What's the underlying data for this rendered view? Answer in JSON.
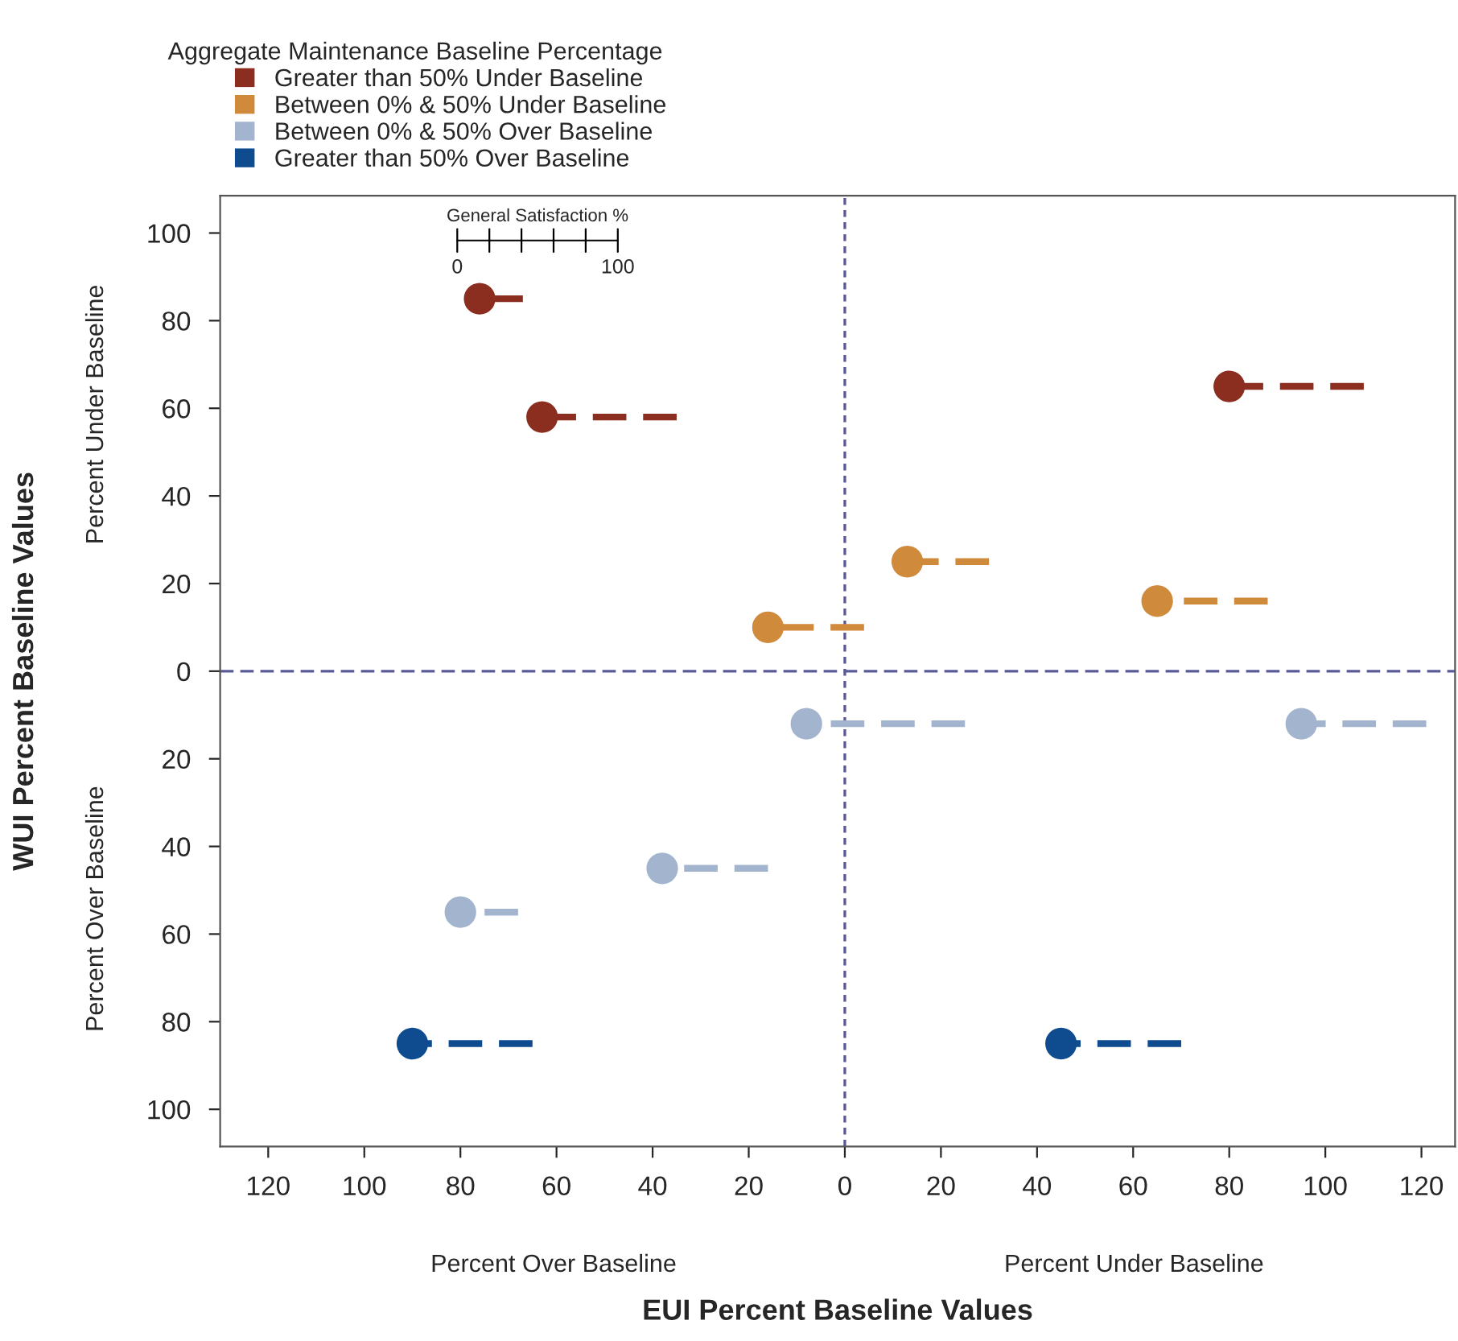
{
  "chart_data": {
    "type": "scatter",
    "xlabel": "EUI Percent Baseline Values",
    "ylabel": "WUI Percent Baseline Values",
    "legend_title": "Aggregate Maintenance Baseline Percentage",
    "legend": "top left",
    "marker": "circle",
    "line_style": "dashed",
    "grid": false,
    "xlim": [
      -130,
      127
    ],
    "ylim": [
      -108.5,
      108.5
    ],
    "xticks": [
      {
        "value": -120,
        "label": "120"
      },
      {
        "value": -100,
        "label": "100"
      },
      {
        "value": -80,
        "label": "80"
      },
      {
        "value": -60,
        "label": "60"
      },
      {
        "value": -40,
        "label": "40"
      },
      {
        "value": -20,
        "label": "20"
      },
      0,
      20,
      40,
      60,
      80,
      100,
      120
    ],
    "yticks": [
      {
        "value": -100,
        "label": "100"
      },
      {
        "value": -80,
        "label": "80"
      },
      {
        "value": -60,
        "label": "60"
      },
      {
        "value": -40,
        "label": "40"
      },
      {
        "value": -20,
        "label": "20"
      },
      0,
      20,
      40,
      60,
      80,
      100
    ],
    "ref_lines": [
      {
        "axis": "x",
        "value": 0,
        "color": "#5a5a96",
        "line_style": "dotted"
      },
      {
        "axis": "y",
        "value": 0,
        "color": "#5a5a96",
        "line_style": "dashed"
      }
    ],
    "annotations": [
      "Percent Under Baseline",
      "Percent Over Baseline",
      "Percent Over Baseline",
      "Percent Under Baseline",
      "General Satisfaction %",
      "0",
      "100"
    ],
    "series": [
      {
        "name": "Greater than 50% Under Baseline",
        "color": "#8b2e20",
        "x": [
          -76,
          -63,
          80
        ],
        "values": [
          85,
          58,
          65
        ],
        "xerrors": [
          [
            -76,
            -67
          ],
          [
            -63,
            -35
          ],
          [
            80,
            108
          ]
        ]
      },
      {
        "name": "Between 0% & 50% Under Baseline",
        "color": "#d08a3c",
        "x": [
          -16,
          13,
          65
        ],
        "values": [
          10,
          25,
          16
        ],
        "xerrors": [
          [
            -16,
            4
          ],
          [
            13,
            30
          ],
          [
            65,
            88
          ]
        ]
      },
      {
        "name": "Between 0% & 50% Over Baseline",
        "color": "#a3b4cf",
        "x": [
          -8,
          95,
          -38,
          -80
        ],
        "values": [
          -12,
          -12,
          -45,
          -55
        ],
        "xerrors": [
          [
            -8,
            25
          ],
          [
            95,
            121
          ],
          [
            -38,
            -16
          ],
          [
            -80,
            -68
          ]
        ]
      },
      {
        "name": "Greater than 50% Over Baseline",
        "color": "#0f4b8f",
        "x": [
          -90,
          45
        ],
        "values": [
          -85,
          -85
        ],
        "xerrors": [
          [
            -90,
            -65
          ],
          [
            45,
            70
          ]
        ]
      }
    ]
  }
}
